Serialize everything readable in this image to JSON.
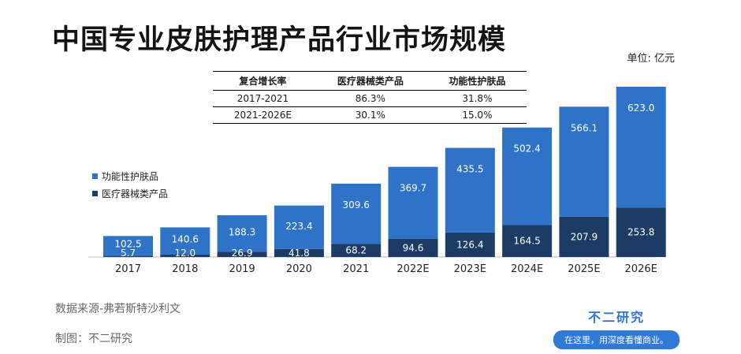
{
  "title": "中国专业皮肤护理产品行业市场规模",
  "unit": "单位: 亿元",
  "cagr_table": {
    "headers": [
      "复合增长率",
      "医疗器械类产品",
      "功能性护肤品"
    ],
    "rows": [
      [
        "2017-2021",
        "86.3%",
        "31.8%"
      ],
      [
        "2021-2026E",
        "30.1%",
        "15.0%"
      ]
    ]
  },
  "source": "数据来源-弗若斯特沙利文",
  "credit": "制图：不二研究",
  "brand": {
    "name": "不二研究",
    "slogan": "在这里，用深度看懂商业。"
  },
  "colors": {
    "functional": "#2f73c9",
    "medical": "#1c3c66"
  },
  "chart_data": {
    "type": "bar",
    "stacked": true,
    "categories": [
      "2017",
      "2018",
      "2019",
      "2020",
      "2021",
      "2022E",
      "2023E",
      "2024E",
      "2025E",
      "2026E"
    ],
    "series": [
      {
        "name": "医疗器械类产品",
        "values": [
          5.7,
          12.0,
          26.9,
          41.8,
          68.2,
          94.6,
          126.4,
          164.5,
          207.9,
          253.8
        ]
      },
      {
        "name": "功能性护肤品",
        "values": [
          102.5,
          140.6,
          188.3,
          223.4,
          309.6,
          369.7,
          435.5,
          502.4,
          566.1,
          623.0
        ]
      }
    ],
    "legend": [
      "功能性护肤品",
      "医疗器械类产品"
    ],
    "legend_position": "left",
    "grid": false
  }
}
